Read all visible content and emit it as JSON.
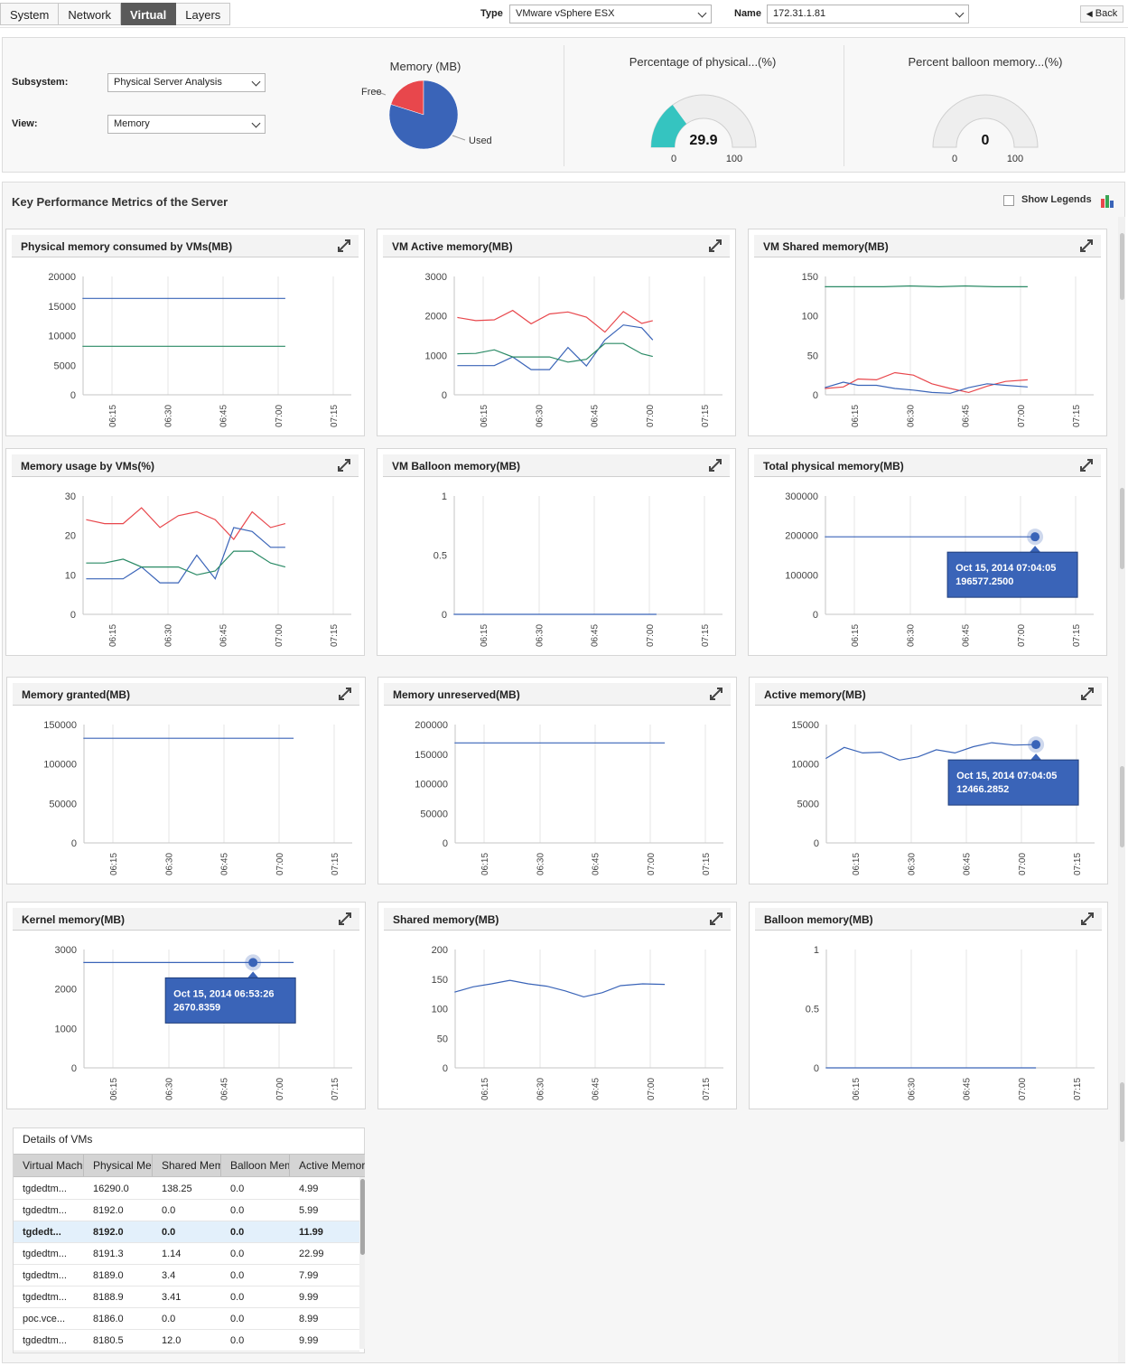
{
  "tabs": [
    "System",
    "Network",
    "Virtual",
    "Layers"
  ],
  "active_tab": "Virtual",
  "type_field": {
    "label": "Type",
    "value": "VMware vSphere ESX"
  },
  "name_field": {
    "label": "Name",
    "value": "172.31.1.81"
  },
  "back_label": "Back",
  "subsystem": {
    "label": "Subsystem:",
    "value": "Physical Server Analysis"
  },
  "view": {
    "label": "View:",
    "value": "Memory"
  },
  "memory_pie": {
    "title": "Memory (MB)",
    "slices": [
      {
        "label": "Free",
        "percent": 20.1,
        "color": "#e8474c"
      },
      {
        "label": "Used",
        "percent": 79.9,
        "color": "#3a64b8"
      }
    ]
  },
  "gauge_physical": {
    "title": "Percentage of physical...(%)",
    "value": "29.9",
    "min": "0",
    "max": "100",
    "color": "#35c4c0"
  },
  "gauge_balloon": {
    "title": "Percent balloon memory...(%)",
    "value": "0",
    "min": "0",
    "max": "100"
  },
  "kpm": {
    "title": "Key Performance Metrics of the Server",
    "legend_label": "Show Legends"
  },
  "series_colors": {
    "blue": "#3a64b8",
    "red": "#e8474c",
    "green": "#2a8a65"
  },
  "chart_data": [
    {
      "title": "Physical memory consumed by VMs(MB)",
      "type": "line",
      "ylim": [
        0,
        20000
      ],
      "yticks": [
        "20000",
        "15000",
        "10000",
        "5000",
        "0"
      ],
      "xticks": [
        "06:15",
        "06:30",
        "06:45",
        "07:00",
        "07:15"
      ],
      "series": [
        {
          "color": "blue",
          "x": [
            "06:07",
            "07:02"
          ],
          "values": [
            16290,
            16290
          ]
        },
        {
          "color": "green",
          "x": [
            "06:07",
            "07:02"
          ],
          "values": [
            8192,
            8192
          ]
        }
      ]
    },
    {
      "title": "VM Active memory(MB)",
      "type": "line",
      "ylim": [
        0,
        3000
      ],
      "yticks": [
        "3000",
        "2000",
        "1000",
        "0"
      ],
      "xticks": [
        "06:15",
        "06:30",
        "06:45",
        "07:00",
        "07:15"
      ],
      "series": [
        {
          "color": "red",
          "x": [
            "06:08",
            "06:13",
            "06:18",
            "06:23",
            "06:28",
            "06:33",
            "06:38",
            "06:43",
            "06:48",
            "06:53",
            "06:58",
            "07:01"
          ],
          "values": [
            1960,
            1880,
            1900,
            2140,
            1800,
            2050,
            2100,
            1970,
            1590,
            2110,
            1810,
            1880
          ]
        },
        {
          "color": "blue",
          "x": [
            "06:08",
            "06:13",
            "06:18",
            "06:23",
            "06:28",
            "06:33",
            "06:38",
            "06:43",
            "06:48",
            "06:53",
            "06:58",
            "07:01"
          ],
          "values": [
            740,
            740,
            740,
            960,
            640,
            640,
            1200,
            730,
            1390,
            1770,
            1700,
            1390
          ]
        },
        {
          "color": "green",
          "x": [
            "06:08",
            "06:13",
            "06:18",
            "06:23",
            "06:28",
            "06:33",
            "06:38",
            "06:43",
            "06:48",
            "06:53",
            "06:58",
            "07:01"
          ],
          "values": [
            1040,
            1050,
            1140,
            960,
            960,
            960,
            830,
            900,
            1300,
            1300,
            1040,
            970
          ]
        }
      ]
    },
    {
      "title": "VM Shared memory(MB)",
      "type": "line",
      "ylim": [
        0,
        150
      ],
      "yticks": [
        "150",
        "100",
        "50",
        "0"
      ],
      "xticks": [
        "06:15",
        "06:30",
        "06:45",
        "07:00",
        "07:15"
      ],
      "series": [
        {
          "color": "green",
          "x": [
            "06:07",
            "06:15",
            "06:23",
            "06:30",
            "06:38",
            "06:45",
            "06:53",
            "07:02"
          ],
          "values": [
            137,
            137,
            137,
            138,
            137,
            138,
            137,
            137
          ]
        },
        {
          "color": "red",
          "x": [
            "06:07",
            "06:12",
            "06:16",
            "06:21",
            "06:26",
            "06:31",
            "06:36",
            "06:41",
            "06:46",
            "06:51",
            "06:56",
            "07:02"
          ],
          "values": [
            8,
            10,
            20,
            19,
            28,
            25,
            14,
            8,
            3,
            11,
            17,
            19
          ]
        },
        {
          "color": "blue",
          "x": [
            "06:07",
            "06:12",
            "06:16",
            "06:21",
            "06:26",
            "06:31",
            "06:36",
            "06:41",
            "06:46",
            "06:51",
            "06:56",
            "07:02"
          ],
          "values": [
            9,
            16,
            12,
            12,
            8,
            6,
            3,
            2,
            9,
            14,
            12,
            10
          ]
        }
      ]
    },
    {
      "title": "Memory usage by VMs(%)",
      "type": "line",
      "ylim": [
        0,
        30
      ],
      "yticks": [
        "30",
        "20",
        "10",
        "0"
      ],
      "xticks": [
        "06:15",
        "06:30",
        "06:45",
        "07:00",
        "07:15"
      ],
      "series": [
        {
          "color": "red",
          "x": [
            "06:08",
            "06:13",
            "06:18",
            "06:23",
            "06:28",
            "06:33",
            "06:38",
            "06:43",
            "06:48",
            "06:53",
            "06:58",
            "07:02"
          ],
          "values": [
            24,
            23,
            23,
            27,
            22,
            25,
            26,
            24,
            19,
            26,
            22,
            23
          ]
        },
        {
          "color": "blue",
          "x": [
            "06:08",
            "06:13",
            "06:18",
            "06:23",
            "06:28",
            "06:33",
            "06:38",
            "06:43",
            "06:48",
            "06:53",
            "06:58",
            "07:02"
          ],
          "values": [
            9,
            9,
            9,
            12,
            8,
            8,
            15,
            9,
            22,
            21,
            17,
            17
          ]
        },
        {
          "color": "green",
          "x": [
            "06:08",
            "06:13",
            "06:18",
            "06:23",
            "06:28",
            "06:33",
            "06:38",
            "06:43",
            "06:48",
            "06:53",
            "06:58",
            "07:02"
          ],
          "values": [
            13,
            13,
            14,
            12,
            12,
            12,
            10,
            11,
            16,
            16,
            13,
            12
          ]
        }
      ]
    },
    {
      "title": "VM Balloon memory(MB)",
      "type": "line",
      "ylim": [
        0,
        1
      ],
      "yticks": [
        "1",
        "0.5",
        "0"
      ],
      "xticks": [
        "06:15",
        "06:30",
        "06:45",
        "07:00",
        "07:15"
      ],
      "series": [
        {
          "color": "blue",
          "x": [
            "06:07",
            "07:02"
          ],
          "values": [
            0,
            0
          ]
        }
      ]
    },
    {
      "title": "Total physical memory(MB)",
      "type": "line",
      "ylim": [
        0,
        300000
      ],
      "yticks": [
        "300000",
        "200000",
        "100000",
        "0"
      ],
      "xticks": [
        "06:15",
        "06:30",
        "06:45",
        "07:00",
        "07:15"
      ],
      "series": [
        {
          "color": "blue",
          "x": [
            "06:07",
            "07:04"
          ],
          "values": [
            196577.25,
            196577.25
          ]
        }
      ],
      "tooltip": {
        "line1": "Oct 15, 2014 07:04:05",
        "line2": "196577.2500",
        "x": "07:04",
        "y": 196577.25
      }
    },
    {
      "title": "Memory granted(MB)",
      "type": "line",
      "ylim": [
        0,
        150000
      ],
      "yticks": [
        "150000",
        "100000",
        "50000",
        "0"
      ],
      "xticks": [
        "06:15",
        "06:30",
        "06:45",
        "07:00",
        "07:15"
      ],
      "series": [
        {
          "color": "blue",
          "x": [
            "06:07",
            "07:04"
          ],
          "values": [
            132600,
            132600
          ]
        }
      ]
    },
    {
      "title": "Memory unreserved(MB)",
      "type": "line",
      "ylim": [
        0,
        200000
      ],
      "yticks": [
        "200000",
        "150000",
        "100000",
        "50000",
        "0"
      ],
      "xticks": [
        "06:15",
        "06:30",
        "06:45",
        "07:00",
        "07:15"
      ],
      "series": [
        {
          "color": "blue",
          "x": [
            "06:07",
            "07:04"
          ],
          "values": [
            169000,
            169000
          ]
        }
      ]
    },
    {
      "title": "Active memory(MB)",
      "type": "line",
      "ylim": [
        0,
        15000
      ],
      "yticks": [
        "15000",
        "10000",
        "5000",
        "0"
      ],
      "xticks": [
        "06:15",
        "06:30",
        "06:45",
        "07:00",
        "07:15"
      ],
      "series": [
        {
          "color": "blue",
          "x": [
            "06:07",
            "06:12",
            "06:17",
            "06:22",
            "06:27",
            "06:32",
            "06:37",
            "06:42",
            "06:47",
            "06:52",
            "06:58",
            "07:04"
          ],
          "values": [
            10700,
            12100,
            11400,
            11500,
            10500,
            10900,
            11800,
            11400,
            12200,
            12700,
            12400,
            12466.2852
          ]
        }
      ],
      "tooltip": {
        "line1": "Oct 15, 2014 07:04:05",
        "line2": "12466.2852",
        "x": "07:04",
        "y": 12466.2852
      }
    },
    {
      "title": "Kernel memory(MB)",
      "type": "line",
      "ylim": [
        0,
        3000
      ],
      "yticks": [
        "3000",
        "2000",
        "1000",
        "0"
      ],
      "xticks": [
        "06:15",
        "06:30",
        "06:45",
        "07:00",
        "07:15"
      ],
      "series": [
        {
          "color": "blue",
          "x": [
            "06:07",
            "06:53",
            "07:04"
          ],
          "values": [
            2670.8359,
            2670.8359,
            2670.8359
          ]
        }
      ],
      "tooltip": {
        "line1": "Oct 15, 2014 06:53:26",
        "line2": "2670.8359",
        "x": "06:53",
        "y": 2670.8359
      }
    },
    {
      "title": "Shared memory(MB)",
      "type": "line",
      "ylim": [
        0,
        200
      ],
      "yticks": [
        "200",
        "150",
        "100",
        "50",
        "0"
      ],
      "xticks": [
        "06:15",
        "06:30",
        "06:45",
        "07:00",
        "07:15"
      ],
      "series": [
        {
          "color": "blue",
          "x": [
            "06:07",
            "06:12",
            "06:17",
            "06:22",
            "06:27",
            "06:32",
            "06:37",
            "06:42",
            "06:47",
            "06:52",
            "06:58",
            "07:04"
          ],
          "values": [
            128,
            137,
            142,
            148,
            142,
            138,
            130,
            120,
            127,
            139,
            142,
            141
          ]
        }
      ]
    },
    {
      "title": "Balloon memory(MB)",
      "type": "line",
      "ylim": [
        0,
        1
      ],
      "yticks": [
        "1",
        "0.5",
        "0"
      ],
      "xticks": [
        "06:15",
        "06:30",
        "06:45",
        "07:00",
        "07:15"
      ],
      "series": [
        {
          "color": "blue",
          "x": [
            "06:07",
            "07:04"
          ],
          "values": [
            0,
            0
          ]
        }
      ]
    }
  ],
  "vm_table": {
    "title": "Details of VMs",
    "columns": [
      "Virtual Machine",
      "Physical Memory",
      "Shared Memory",
      "Balloon Memory",
      "Active Memory"
    ],
    "rows": [
      [
        "tgdedtm...",
        "16290.0",
        "138.25",
        "0.0",
        "4.99"
      ],
      [
        "tgdedtm...",
        "8192.0",
        "0.0",
        "0.0",
        "5.99"
      ],
      [
        "tgdedt...",
        "8192.0",
        "0.0",
        "0.0",
        "11.99"
      ],
      [
        "tgdedtm...",
        "8191.3",
        "1.14",
        "0.0",
        "22.99"
      ],
      [
        "tgdedtm...",
        "8189.0",
        "3.4",
        "0.0",
        "7.99"
      ],
      [
        "tgdedtm...",
        "8188.9",
        "3.41",
        "0.0",
        "9.99"
      ],
      [
        "poc.vce...",
        "8186.0",
        "0.0",
        "0.0",
        "8.99"
      ],
      [
        "tgdedtm...",
        "8180.5",
        "12.0",
        "0.0",
        "9.99"
      ]
    ],
    "selected_row": 2
  }
}
